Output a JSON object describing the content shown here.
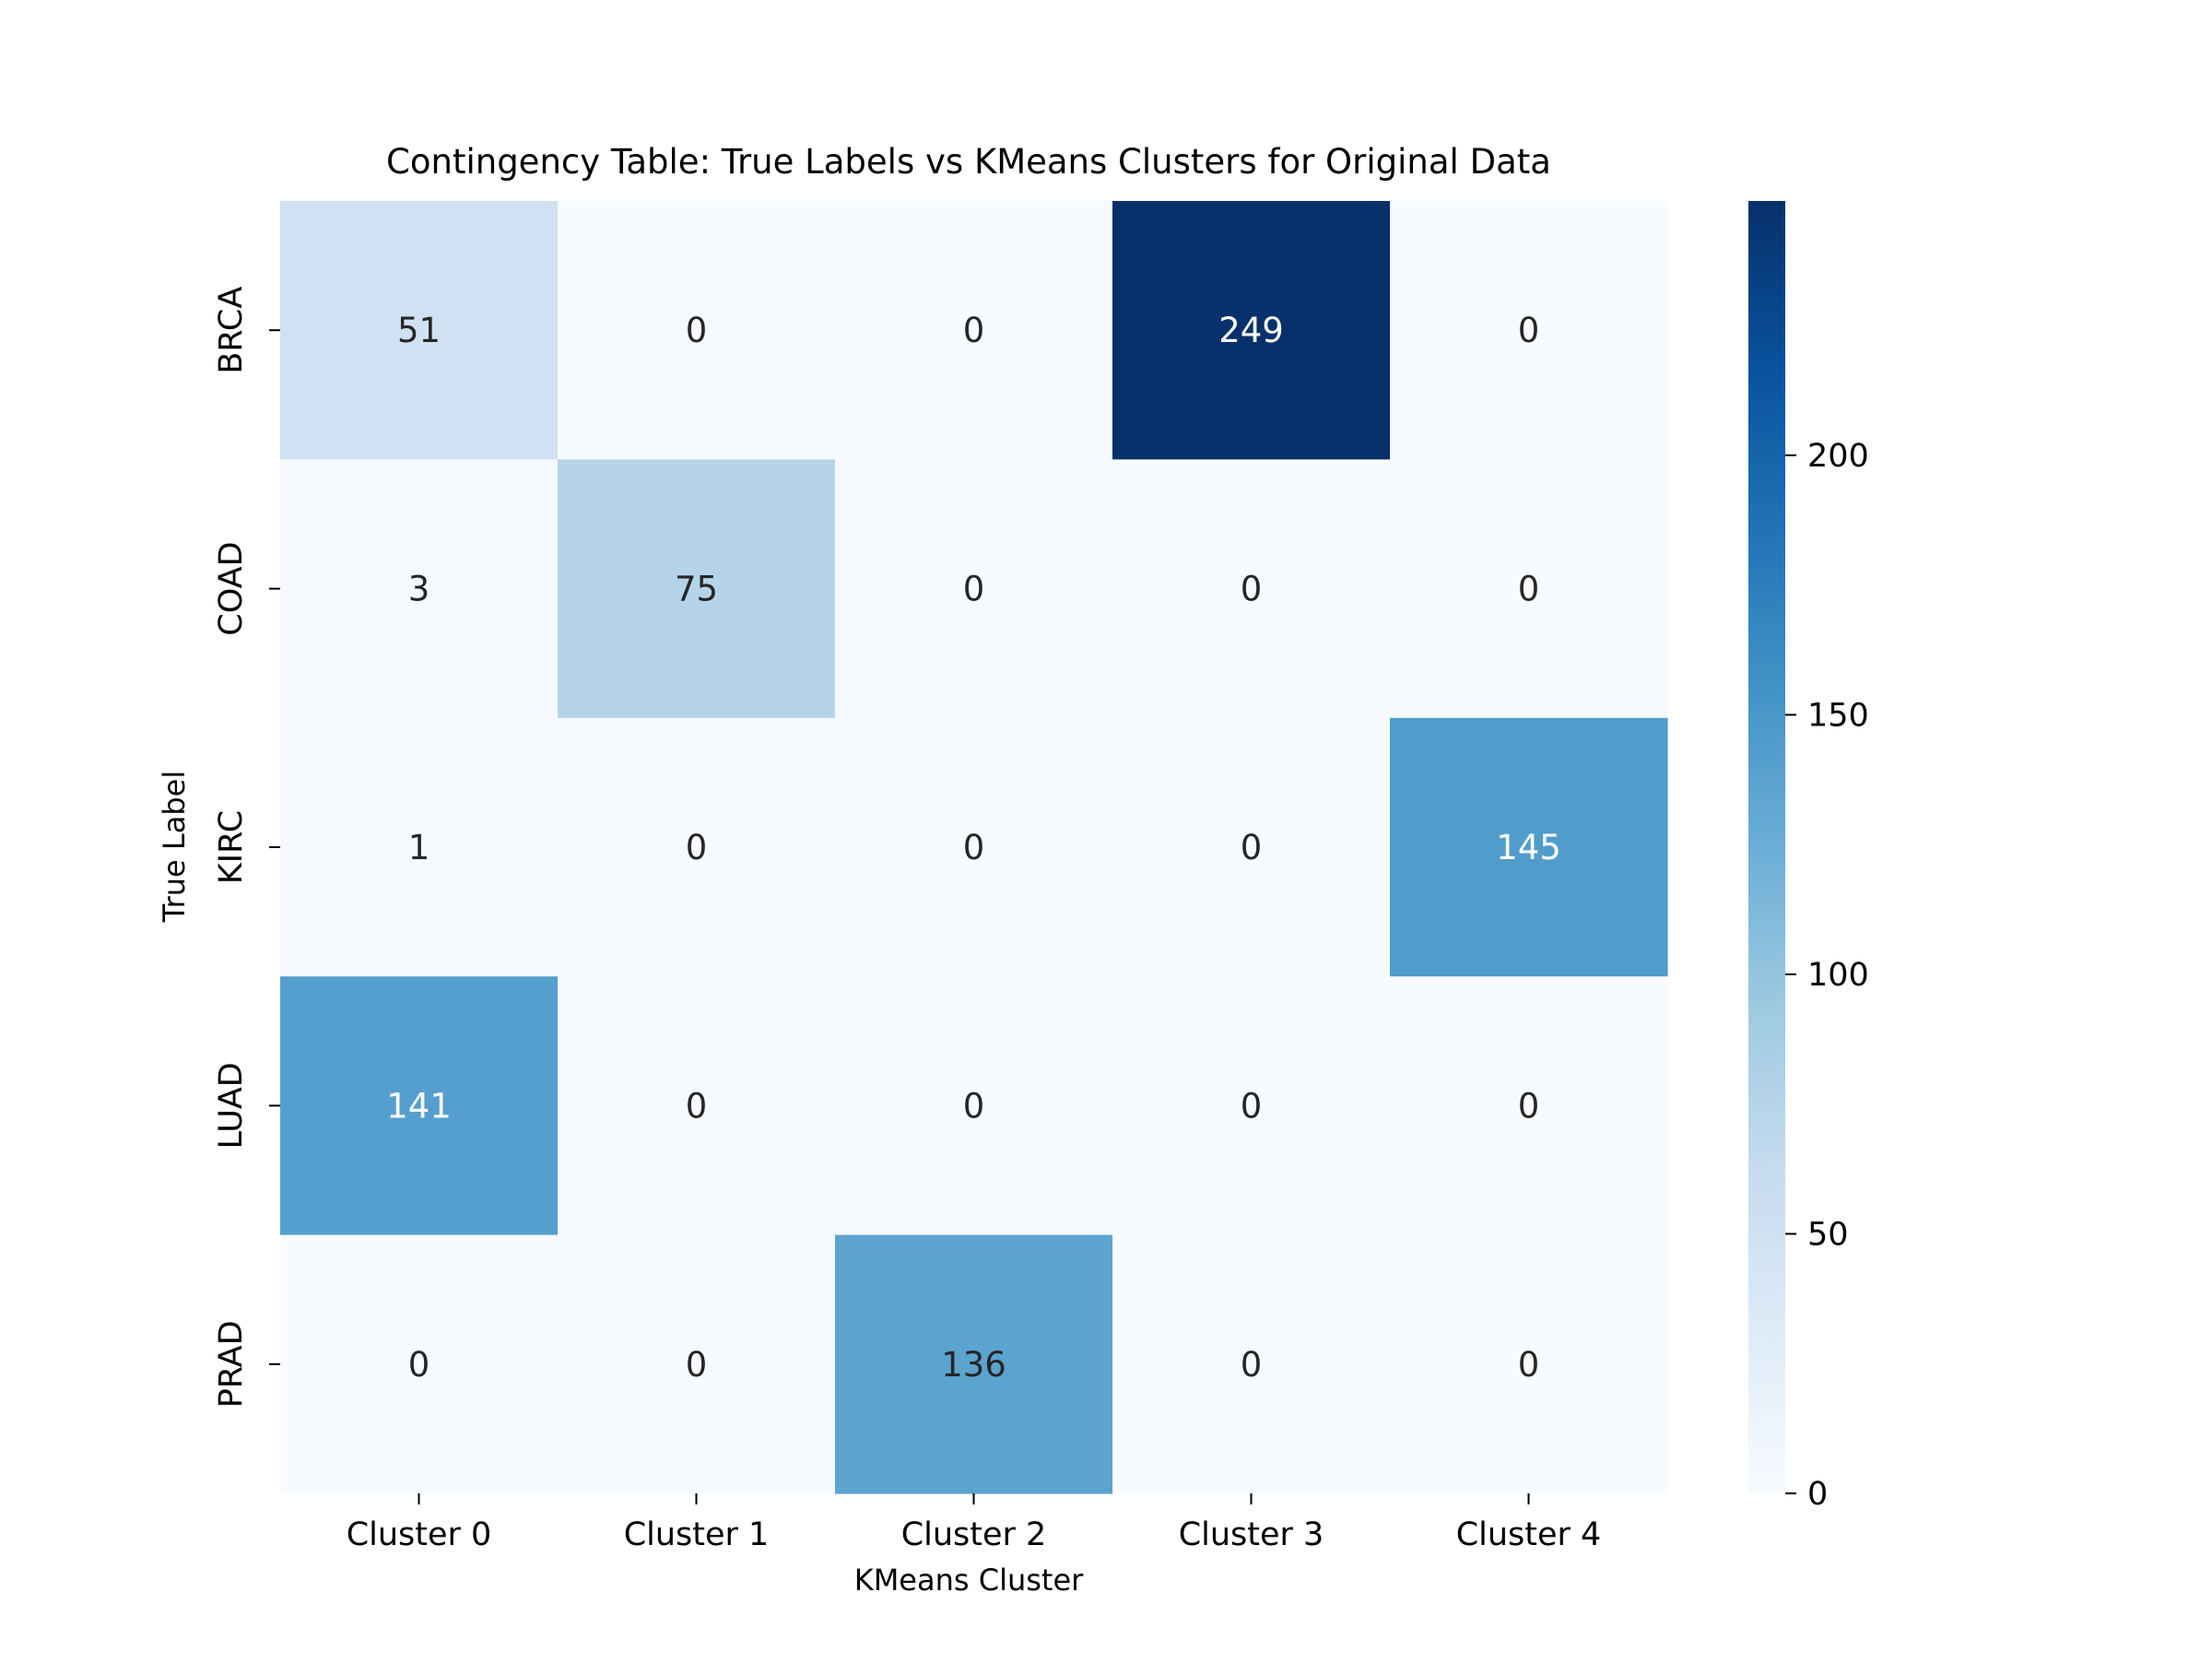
{
  "chart_data": {
    "type": "heatmap",
    "title": "Contingency Table: True Labels vs KMeans Clusters for Original Data",
    "xlabel": "KMeans Cluster",
    "ylabel": "True Label",
    "x_categories": [
      "Cluster 0",
      "Cluster 1",
      "Cluster 2",
      "Cluster 3",
      "Cluster 4"
    ],
    "y_categories": [
      "BRCA",
      "COAD",
      "KIRC",
      "LUAD",
      "PRAD"
    ],
    "values": [
      [
        51,
        0,
        0,
        249,
        0
      ],
      [
        3,
        75,
        0,
        0,
        0
      ],
      [
        1,
        0,
        0,
        0,
        145
      ],
      [
        141,
        0,
        0,
        0,
        0
      ],
      [
        0,
        0,
        136,
        0,
        0
      ]
    ],
    "colormap": "Blues",
    "colorbar": {
      "range": [
        0,
        249
      ],
      "ticks": [
        0,
        50,
        100,
        150,
        200
      ],
      "tick_labels": [
        "0",
        "50",
        "100",
        "150",
        "200"
      ]
    },
    "grid": false,
    "legend": "colorbar-right"
  }
}
